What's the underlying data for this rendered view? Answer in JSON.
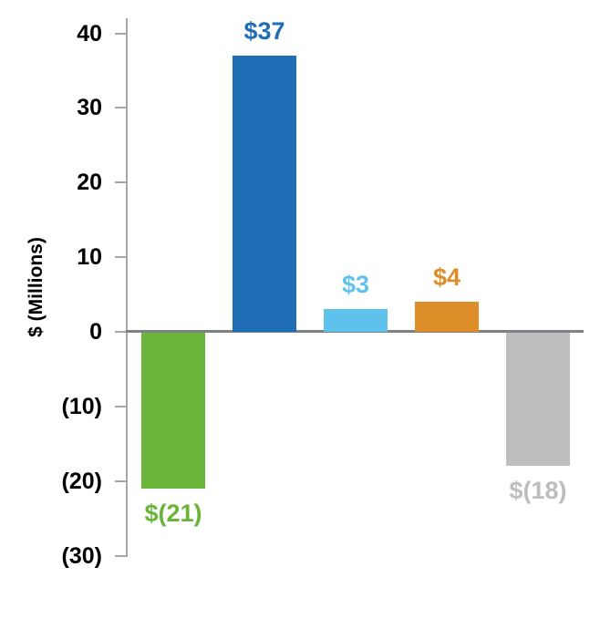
{
  "chart_data": {
    "type": "bar",
    "title": "",
    "ylabel": "$ (Millions)",
    "values": [
      -21,
      37,
      3,
      4,
      -18
    ],
    "bar_labels": [
      "$(21)",
      "$37",
      "$3",
      "$4",
      "$(18)"
    ],
    "bar_colors": [
      "#69B53A",
      "#1F6DB5",
      "#5EC2ED",
      "#DD8E28",
      "#BCBEC0"
    ],
    "label_colors": [
      "#69B53A",
      "#1F6DB5",
      "#5EC2ED",
      "#DD8E28",
      "#BBBDBF"
    ],
    "ylim": [
      -30,
      40
    ],
    "yticks": [
      40,
      30,
      20,
      10,
      0,
      -10,
      -20,
      -30
    ],
    "ytick_labels": [
      "40",
      "30",
      "20",
      "10",
      "0",
      "(10)",
      "(20)",
      "(30)"
    ],
    "grid": false,
    "legend": "none",
    "x_axis_labels": "none"
  },
  "style": {
    "background": "#FFFFFF",
    "axis_color": "#A6A6A6",
    "zero_line_color": "#808184",
    "tick_label_color": "#000000"
  }
}
